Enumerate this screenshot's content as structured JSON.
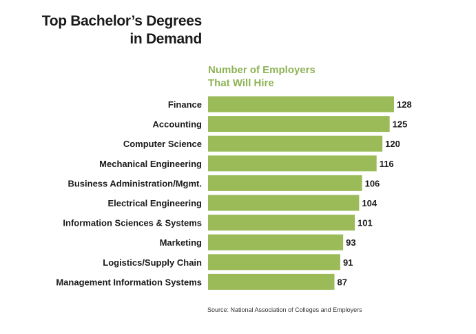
{
  "title_lines": [
    "Top Bachelor’s Degrees",
    "in Demand"
  ],
  "subtitle_lines": [
    "Number of Employers",
    "That Will Hire"
  ],
  "source": "Source: National Association of Colleges and Employers",
  "colors": {
    "bar": "#9bbb59",
    "accent_text": "#8db356",
    "text": "#1a1a1a"
  },
  "chart_data": {
    "type": "bar",
    "orientation": "horizontal",
    "categories": [
      "Finance",
      "Accounting",
      "Computer Science",
      "Mechanical Engineering",
      "Business Administration/Mgmt.",
      "Electrical Engineering",
      "Information Sciences & Systems",
      "Marketing",
      "Logistics/Supply Chain",
      "Management Information Systems"
    ],
    "values": [
      128,
      125,
      120,
      116,
      106,
      104,
      101,
      93,
      91,
      87
    ],
    "xlim": [
      0,
      128
    ],
    "grid": false,
    "legend": "none",
    "data_labels": true
  }
}
